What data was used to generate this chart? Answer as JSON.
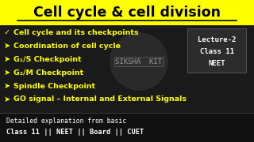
{
  "title": "Cell cycle & cell division",
  "title_color": "#000000",
  "title_bg": "#ffff00",
  "main_bg": "#1a1a1a",
  "bullet_symbols": [
    "✓",
    "➤",
    "➤",
    "➤",
    "➤",
    "➤"
  ],
  "bullet_texts": [
    "Cell cycle and its checkpoints",
    "Coordination of cell cycle",
    "G₁/S Checkpoint",
    "G₂/M Checkpoint",
    "Spindle Checkpoint",
    "GO signal – Internal and External Signals"
  ],
  "bullet_color": "#ffff00",
  "side_text_lines": [
    "Lecture-2",
    "Class 11",
    "NEET"
  ],
  "side_text_color": "#ffffff",
  "bottom_line1": "Detailed explanation from basic",
  "bottom_line2": "Class 11 || NEET || Board || CUET",
  "bottom_text_color": "#ffffff",
  "watermark": "SIKSHA  KIT"
}
